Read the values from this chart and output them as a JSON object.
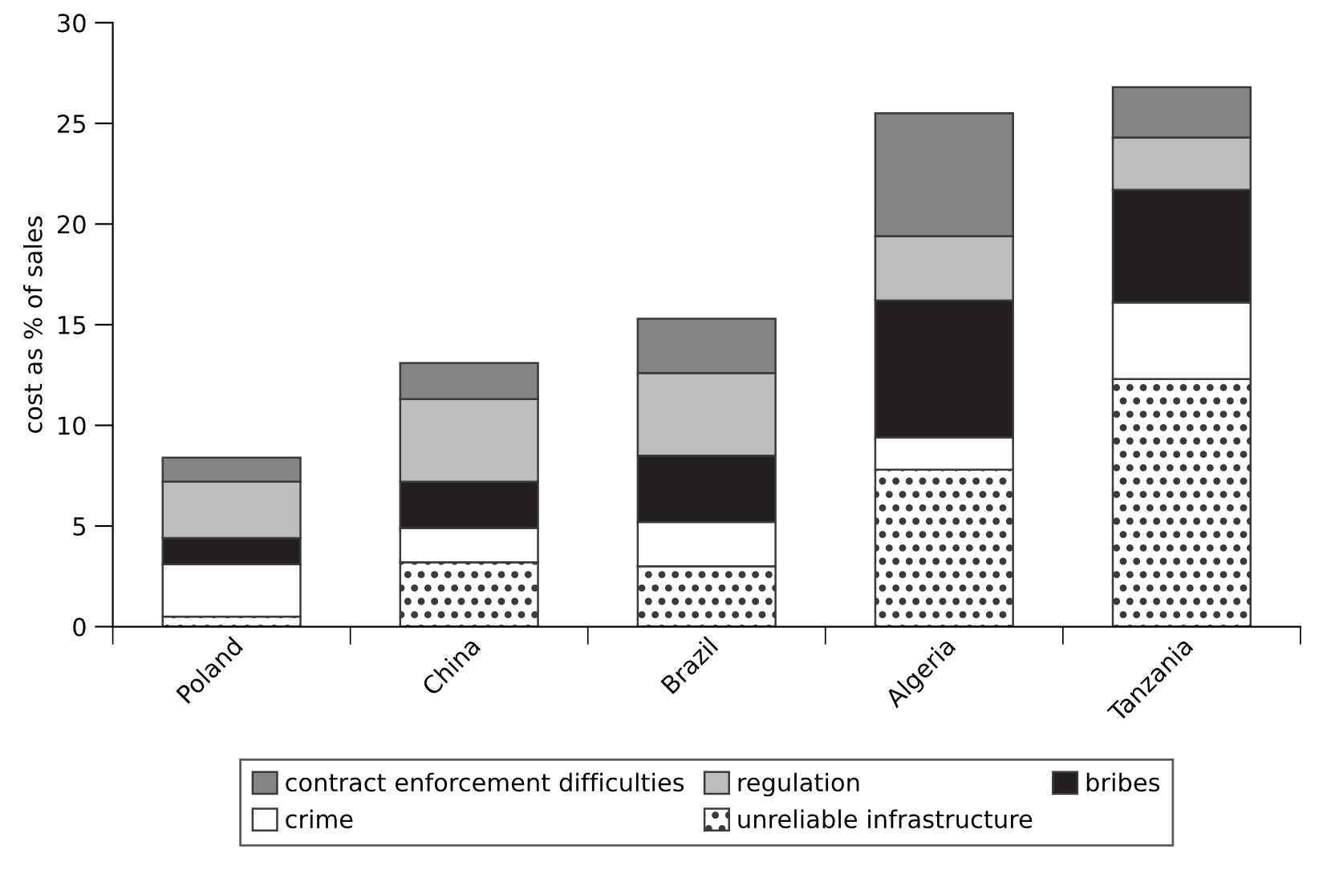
{
  "chart_data": {
    "type": "bar",
    "stacked": true,
    "ylabel": "cost as % of sales",
    "categories": [
      "Poland",
      "China",
      "Brazil",
      "Algeria",
      "Tanzania"
    ],
    "series": [
      {
        "name": "unreliable infrastructure",
        "color": "#ffffff",
        "values": [
          0.5,
          3.2,
          3.0,
          7.8,
          12.3
        ]
      },
      {
        "name": "crime",
        "color": "#ffffff",
        "values": [
          2.6,
          1.7,
          2.2,
          1.6,
          3.8
        ]
      },
      {
        "name": "bribes",
        "color": "#231f20",
        "values": [
          1.3,
          2.3,
          3.3,
          6.8,
          5.6
        ]
      },
      {
        "name": "regulation",
        "color": "#bcbdbf",
        "values": [
          2.8,
          4.1,
          4.1,
          3.2,
          2.6
        ]
      },
      {
        "name": "contract enforcement difficulties",
        "color": "#848486",
        "values": [
          1.2,
          1.8,
          2.7,
          6.1,
          2.5
        ]
      }
    ],
    "ylim": [
      0,
      30
    ],
    "yticks": [
      0,
      5,
      10,
      15,
      20,
      25,
      30
    ],
    "grid": false,
    "legend": "bottom"
  }
}
